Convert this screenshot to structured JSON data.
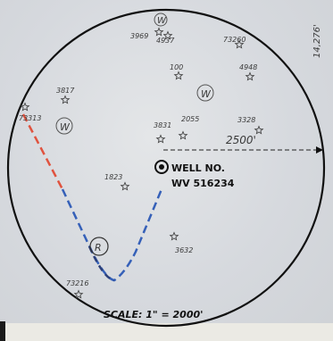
{
  "margin_text": "14,276'",
  "well": {
    "label": "WELL NO.",
    "id": "WV 516234"
  },
  "offset_distance": "2500'",
  "scale_text": "SCALE: 1\" = 2000'",
  "wells": [
    {
      "name": "3969",
      "kind": "star"
    },
    {
      "name": "4937",
      "kind": "star"
    },
    {
      "name": "73260",
      "kind": "star"
    },
    {
      "name": "100",
      "kind": "star"
    },
    {
      "name": "4948",
      "kind": "star"
    },
    {
      "name": "3817",
      "kind": "star"
    },
    {
      "name": "73313",
      "kind": "star"
    },
    {
      "name": "3831",
      "kind": "star"
    },
    {
      "name": "2055",
      "kind": "star"
    },
    {
      "name": "3328",
      "kind": "star"
    },
    {
      "name": "1823",
      "kind": "star"
    },
    {
      "name": "3632",
      "kind": "star"
    },
    {
      "name": "73216",
      "kind": "star"
    }
  ],
  "markers": [
    {
      "name": "W",
      "kind": "circle-letter"
    },
    {
      "name": "W",
      "kind": "circle-letter"
    },
    {
      "name": "W",
      "kind": "circle-letter"
    },
    {
      "name": "R",
      "kind": "circle-letter"
    }
  ],
  "colors": {
    "boundary": "#111111",
    "path_red": "#e0533f",
    "path_blue": "#3560b8",
    "path_navy": "#2b3f7a"
  }
}
